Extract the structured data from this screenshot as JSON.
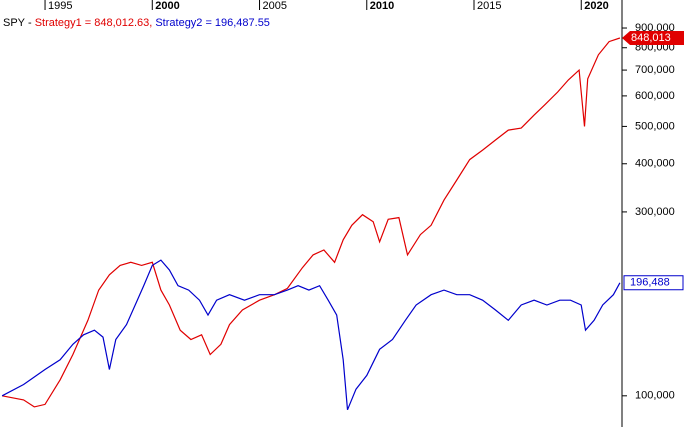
{
  "chart_data": {
    "type": "line",
    "title": "SPY",
    "title_sep": "-",
    "eq": "=",
    "list_sep": ",",
    "log_scale": true,
    "xlim": [
      1992.9,
      2021.9
    ],
    "xticks": [
      1995,
      2000,
      2005,
      2010,
      2015,
      2020
    ],
    "ylim": [
      83000,
      1064000
    ],
    "yticks": [
      {
        "value": 100000,
        "label": "100,000"
      },
      {
        "value": 300000,
        "label": "300,000"
      },
      {
        "value": 400000,
        "label": "400,000"
      },
      {
        "value": 500000,
        "label": "500,000"
      },
      {
        "value": 600000,
        "label": "600,000"
      },
      {
        "value": 700000,
        "label": "700,000"
      },
      {
        "value": 800000,
        "label": "800,000"
      },
      {
        "value": 900000,
        "label": "900,000"
      }
    ],
    "series": [
      {
        "name": "Strategy1",
        "color": "#e00000",
        "last": 848012.63,
        "last_label": "848,012.63",
        "badge": "848,013",
        "x": [
          1993.0,
          1994.0,
          1994.5,
          1995.0,
          1995.7,
          1996.3,
          1997.0,
          1997.5,
          1998.0,
          1998.5,
          1999.0,
          1999.5,
          2000.0,
          2000.4,
          2000.8,
          2001.3,
          2001.8,
          2002.3,
          2002.7,
          2003.2,
          2003.6,
          2004.2,
          2005.0,
          2005.7,
          2006.3,
          2007.0,
          2007.5,
          2008.0,
          2008.5,
          2008.9,
          2009.3,
          2009.8,
          2010.3,
          2010.6,
          2011.0,
          2011.5,
          2011.9,
          2012.5,
          2013.0,
          2013.6,
          2014.2,
          2014.8,
          2015.4,
          2016.0,
          2016.6,
          2017.2,
          2017.8,
          2018.3,
          2018.9,
          2019.4,
          2019.9,
          2020.15,
          2020.3,
          2020.8,
          2021.3,
          2021.8
        ],
        "values": [
          100000,
          97600,
          93600,
          95000,
          110000,
          128000,
          157000,
          188000,
          206000,
          218000,
          222000,
          218000,
          222000,
          188000,
          172000,
          148000,
          140000,
          144000,
          128000,
          136000,
          153000,
          167000,
          177000,
          183000,
          190000,
          215000,
          232000,
          239000,
          222000,
          254000,
          277000,
          295000,
          283000,
          251000,
          287000,
          290000,
          232000,
          262000,
          277000,
          322000,
          363000,
          410000,
          434000,
          461000,
          489000,
          495000,
          535000,
          569000,
          614000,
          660000,
          700000,
          500000,
          664000,
          767000,
          830000,
          848012.63
        ]
      },
      {
        "name": "Strategy2",
        "color": "#0000cc",
        "last": 196487.55,
        "last_label": "196,487.55",
        "badge": "196,488",
        "x": [
          1993.0,
          1994.0,
          1995.0,
          1995.7,
          1996.3,
          1996.8,
          1997.3,
          1997.7,
          1998.0,
          1998.3,
          1998.8,
          1999.3,
          1999.6,
          2000.0,
          2000.4,
          2000.8,
          2001.2,
          2001.7,
          2002.2,
          2002.6,
          2003.0,
          2003.6,
          2004.3,
          2005.0,
          2005.7,
          2006.3,
          2006.8,
          2007.3,
          2007.8,
          2008.2,
          2008.6,
          2008.9,
          2009.1,
          2009.5,
          2010.0,
          2010.6,
          2011.2,
          2011.8,
          2012.3,
          2013.0,
          2013.6,
          2014.2,
          2014.8,
          2015.4,
          2016.0,
          2016.6,
          2017.2,
          2017.8,
          2018.4,
          2019.0,
          2019.5,
          2020.0,
          2020.2,
          2020.6,
          2021.0,
          2021.5,
          2021.8
        ],
        "values": [
          100000,
          107000,
          117000,
          124000,
          136000,
          144000,
          148000,
          142000,
          117000,
          140000,
          153000,
          177000,
          193000,
          218000,
          225000,
          212000,
          193000,
          188000,
          177000,
          162000,
          177000,
          183000,
          177000,
          183000,
          183000,
          188000,
          193000,
          188000,
          193000,
          177000,
          162000,
          124000,
          92000,
          104000,
          113000,
          132000,
          140000,
          157000,
          172000,
          183000,
          188000,
          183000,
          183000,
          177000,
          167000,
          157000,
          172000,
          177000,
          172000,
          177000,
          177000,
          172000,
          148000,
          157000,
          172000,
          183000,
          196487.55
        ]
      }
    ]
  }
}
